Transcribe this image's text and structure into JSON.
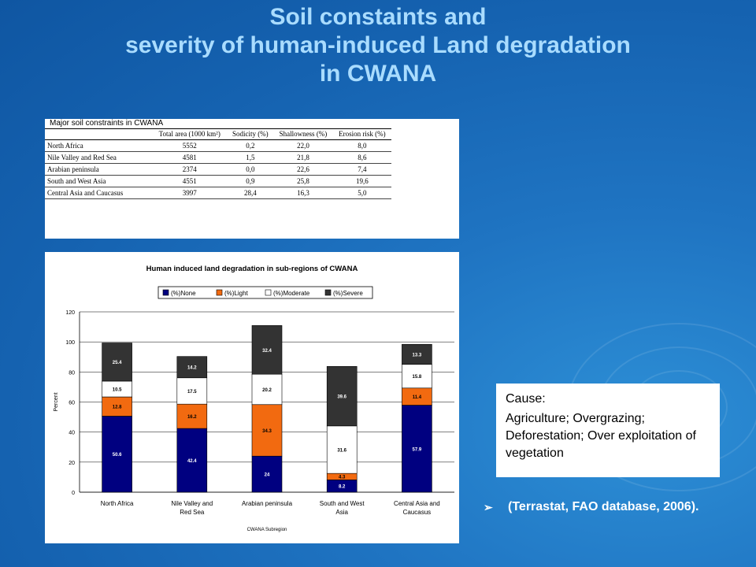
{
  "title": {
    "line1": "Soil constaints and",
    "line2": "severity of human-induced Land degradation",
    "line3": "in CWANA"
  },
  "soil_table": {
    "caption": "Major soil constraints in CWANA",
    "headers": [
      "",
      "Total area (1000 km²)",
      "Sodicity (%)",
      "Shallowness (%)",
      "Erosion risk (%)"
    ],
    "rows": [
      {
        "region": "North Africa",
        "total_area": "5552",
        "sodicity": "0,2",
        "shallowness": "22,0",
        "erosion": "8,0"
      },
      {
        "region": "Nile Valley and Red Sea",
        "total_area": "4581",
        "sodicity": "1,5",
        "shallowness": "21,8",
        "erosion": "8,6"
      },
      {
        "region": "Arabian peninsula",
        "total_area": "2374",
        "sodicity": "0,0",
        "shallowness": "22,6",
        "erosion": "7,4"
      },
      {
        "region": "South and West Asia",
        "total_area": "4551",
        "sodicity": "0,9",
        "shallowness": "25,8",
        "erosion": "19,6"
      },
      {
        "region": "Central Asia and Caucasus",
        "total_area": "3997",
        "sodicity": "28,4",
        "shallowness": "16,3",
        "erosion": "5,0"
      }
    ]
  },
  "chart_data": {
    "type": "bar",
    "stacked": true,
    "title": "Human induced land degradation in sub-regions of CWANA",
    "xlabel": "CWANA Subregion",
    "ylabel": "Percent",
    "ylim": [
      0,
      120
    ],
    "yticks": [
      0,
      20,
      40,
      60,
      80,
      100,
      120
    ],
    "grid": true,
    "legend_position": "top",
    "categories": [
      [
        "North Africa"
      ],
      [
        "Nile Valley and",
        "Red Sea"
      ],
      [
        "Arabian peninsula"
      ],
      [
        "South and West",
        "Asia"
      ],
      [
        "Central Asia and",
        "Caucasus"
      ]
    ],
    "series": [
      {
        "name": "(%)None",
        "color": "#000080",
        "label_color": "#ffffff",
        "values": [
          50.6,
          42.4,
          24,
          8.2,
          57.9
        ],
        "labels": [
          "50.6",
          "42.4",
          "24",
          "8.2",
          "57.9"
        ]
      },
      {
        "name": "(%)Light",
        "color": "#f26a10",
        "label_color": "#000000",
        "values": [
          12.8,
          16.2,
          34.3,
          4.3,
          11.4
        ],
        "labels": [
          "12.8",
          "16.2",
          "34.3",
          "4.3",
          "11.4"
        ]
      },
      {
        "name": "(%)Moderate",
        "color": "#ffffff",
        "label_color": "#000000",
        "values": [
          10.5,
          17.5,
          20.2,
          31.6,
          15.8
        ],
        "labels": [
          "10.5",
          "17.5",
          "20.2",
          "31.6",
          "15.8"
        ]
      },
      {
        "name": "(%)Severe",
        "color": "#333333",
        "label_color": "#ffffff",
        "values": [
          25.4,
          14.2,
          32.4,
          39.6,
          13.3
        ],
        "labels": [
          "25.4",
          "14.2",
          "32.4",
          "39.6",
          "13.3"
        ]
      }
    ]
  },
  "cause": {
    "heading": "Cause:",
    "text": "Agriculture; Overgrazing; Deforestation; Over exploitation of vegetation"
  },
  "source": {
    "bullet": "➢",
    "text": "(Terrastat, FAO database, 2006)."
  }
}
